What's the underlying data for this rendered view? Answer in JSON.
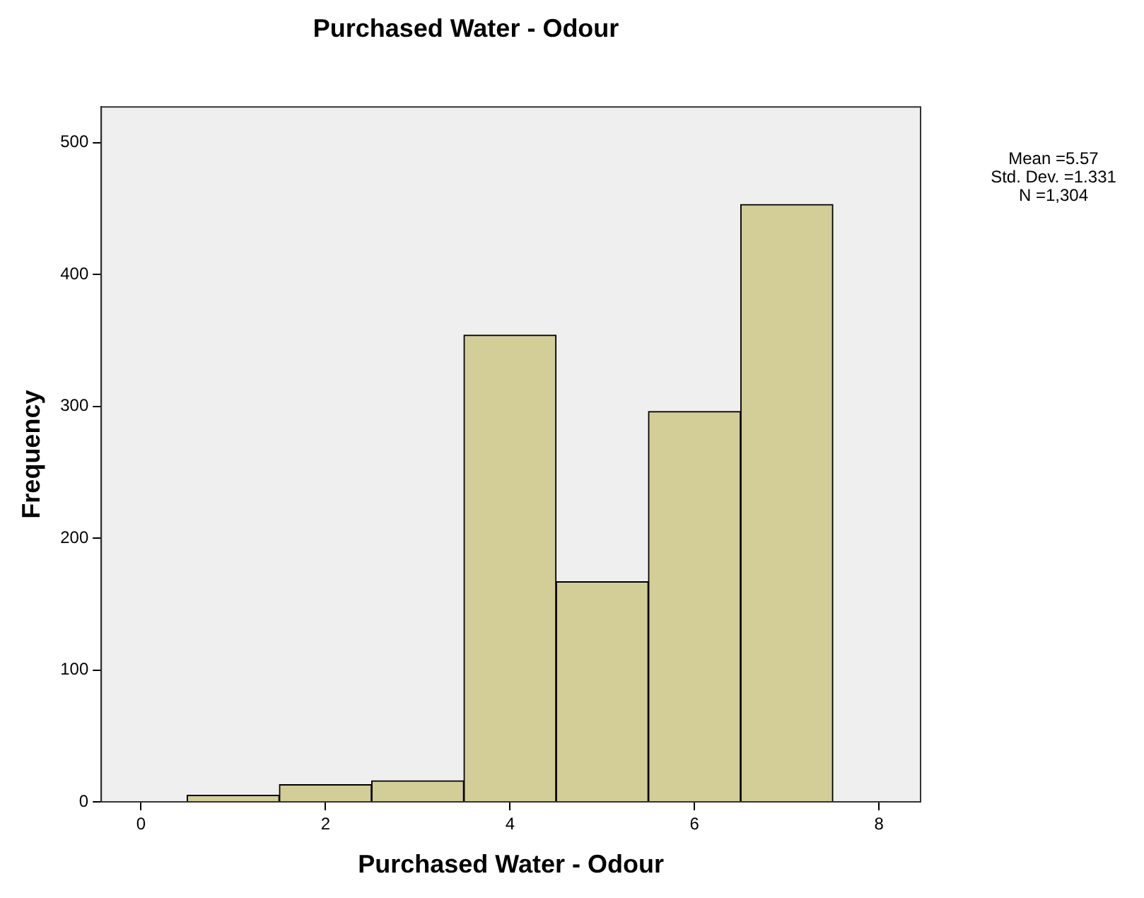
{
  "chart_data": {
    "type": "histogram",
    "title": "Purchased Water - Odour",
    "xlabel": "Purchased Water - Odour",
    "ylabel": "Frequency",
    "bins": [
      0.5,
      1.5,
      2.5,
      3.5,
      4.5,
      5.5,
      6.5,
      7.5
    ],
    "values": [
      5,
      13,
      16,
      354,
      167,
      296,
      453
    ],
    "color": "#d3ce98",
    "xlim": [
      -0.43,
      8.45
    ],
    "xticks": [
      0,
      2,
      4,
      6,
      8
    ],
    "ylim": [
      0,
      527
    ],
    "yticks": [
      0,
      100,
      200,
      300,
      400,
      500
    ],
    "grid": false,
    "legend": false,
    "annotations": [
      "Mean =5.57",
      "Std. Dev. =1.331",
      "N =1,304"
    ]
  }
}
